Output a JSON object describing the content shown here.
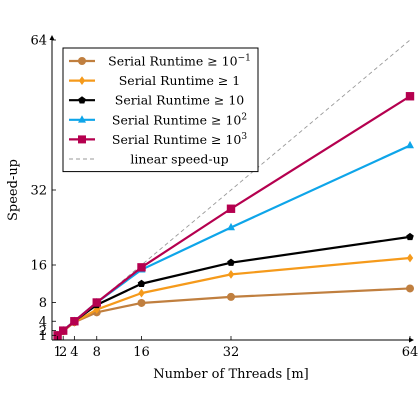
{
  "chart_data": {
    "type": "line",
    "xlabel": "Number of Threads [m]",
    "ylabel": "Speed-up",
    "xlim": [
      0,
      64
    ],
    "ylim": [
      0,
      64
    ],
    "x_ticks": [
      1,
      2,
      4,
      8,
      16,
      32,
      64
    ],
    "x_tick_labels": [
      "1",
      "2",
      "4",
      "8",
      "16",
      "32",
      "64"
    ],
    "y_ticks": [
      1,
      2,
      4,
      8,
      16,
      32,
      64
    ],
    "y_tick_labels": [
      "1",
      "2",
      "4",
      "8",
      "16",
      "32",
      "64"
    ],
    "legend_position": "top-left",
    "grid": false,
    "x": [
      1,
      2,
      4,
      8,
      16,
      32,
      64
    ],
    "series": [
      {
        "name": "Serial Runtime ≥ 10",
        "name_exp": "−1",
        "color": "#c07f3f",
        "marker": "circle",
        "values": [
          1,
          1.9,
          3.8,
          5.9,
          7.9,
          9.2,
          11
        ]
      },
      {
        "name": "Serial Runtime ≥ 1",
        "name_exp": "",
        "color": "#f59a1b",
        "marker": "diamond",
        "values": [
          1,
          1.9,
          3.8,
          6.5,
          10,
          14,
          17.5
        ]
      },
      {
        "name": "Serial Runtime ≥ 10",
        "name_exp": "",
        "color": "#000000",
        "marker": "pentagon",
        "values": [
          1,
          2,
          4,
          7.5,
          12,
          16.5,
          22
        ]
      },
      {
        "name": "Serial Runtime ≥ 10",
        "name_exp": "2",
        "color": "#0ea5e9",
        "marker": "triangle",
        "values": [
          1,
          2,
          4,
          8,
          15,
          24,
          41.5
        ]
      },
      {
        "name": "Serial Runtime ≥ 10",
        "name_exp": "3",
        "color": "#b5004f",
        "marker": "square",
        "values": [
          1,
          2,
          4,
          8,
          15.5,
          28,
          52
        ]
      },
      {
        "name": "linear speed-up",
        "name_exp": "",
        "color": "#999999",
        "marker": "none",
        "dashed": true,
        "values": [
          1,
          2,
          4,
          8,
          16,
          32,
          64
        ]
      }
    ]
  }
}
